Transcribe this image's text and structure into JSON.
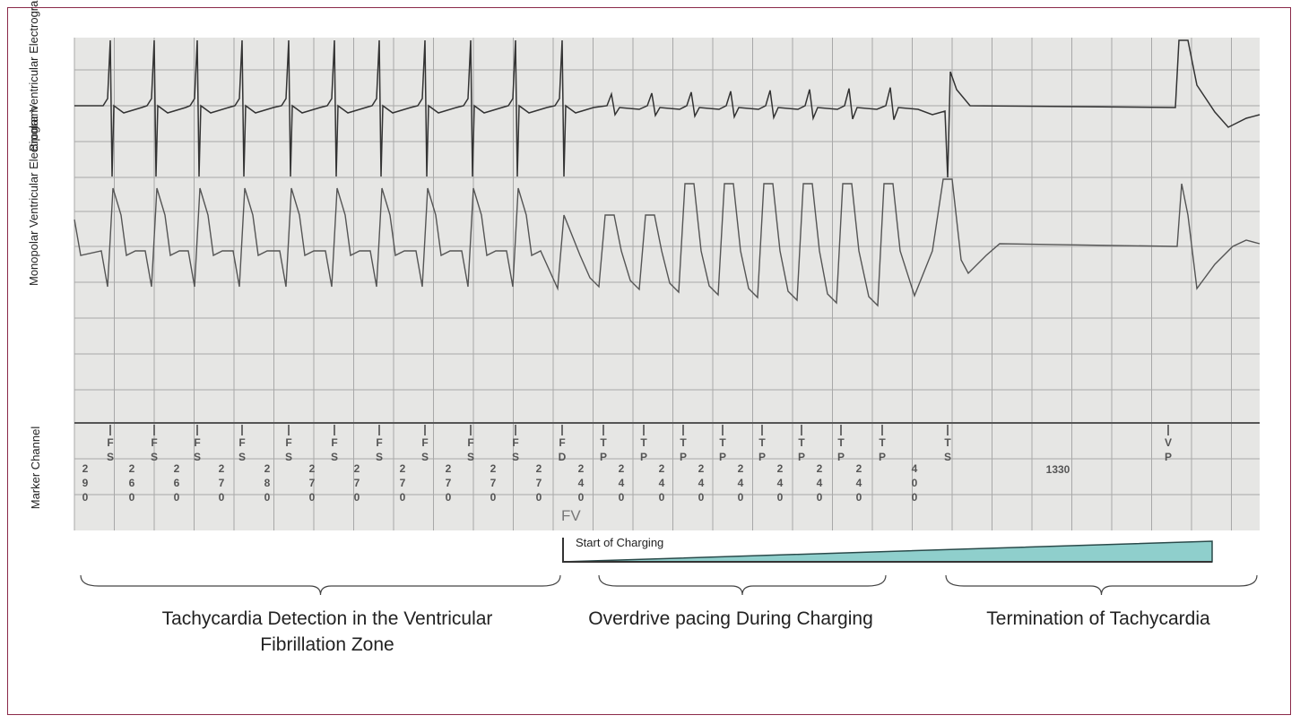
{
  "traces": {
    "bipolar_label": "Bipolar Ventricular Electrogram",
    "monopolar_label": "Monopolar Ventricular Electrogram",
    "marker_label": "Marker Channel"
  },
  "markers": [
    {
      "top": "F",
      "bottom": "S"
    },
    {
      "top": "F",
      "bottom": "S"
    },
    {
      "top": "F",
      "bottom": "S"
    },
    {
      "top": "F",
      "bottom": "S"
    },
    {
      "top": "F",
      "bottom": "S"
    },
    {
      "top": "F",
      "bottom": "S"
    },
    {
      "top": "F",
      "bottom": "S"
    },
    {
      "top": "F",
      "bottom": "S"
    },
    {
      "top": "F",
      "bottom": "S"
    },
    {
      "top": "F",
      "bottom": "S"
    },
    {
      "top": "F",
      "bottom": "D"
    },
    {
      "top": "T",
      "bottom": "P"
    },
    {
      "top": "T",
      "bottom": "P"
    },
    {
      "top": "T",
      "bottom": "P"
    },
    {
      "top": "T",
      "bottom": "P"
    },
    {
      "top": "T",
      "bottom": "P"
    },
    {
      "top": "T",
      "bottom": "P"
    },
    {
      "top": "T",
      "bottom": "P"
    },
    {
      "top": "T",
      "bottom": "P"
    },
    {
      "top": "T",
      "bottom": "S"
    },
    {
      "top": "V",
      "bottom": "P"
    }
  ],
  "intervals_ms": [
    "290",
    "260",
    "260",
    "270",
    "280",
    "270",
    "270",
    "270",
    "270",
    "270",
    "270",
    "240",
    "240",
    "240",
    "240",
    "240",
    "240",
    "240",
    "240",
    "400",
    "1330"
  ],
  "zone_label": "FV",
  "charging": {
    "label": "Start of Charging",
    "fill_color": "#8fcfcc"
  },
  "phases": [
    {
      "label": "Tachycardia Detection in the Ventricular Fibrillation Zone"
    },
    {
      "label": "Overdrive pacing During Charging"
    },
    {
      "label": "Termination of Tachycardia"
    }
  ],
  "colors": {
    "border": "#8b2a4a",
    "paper": "#e6e6e4",
    "grid": "#a8a8a8",
    "trace": "#333333"
  }
}
